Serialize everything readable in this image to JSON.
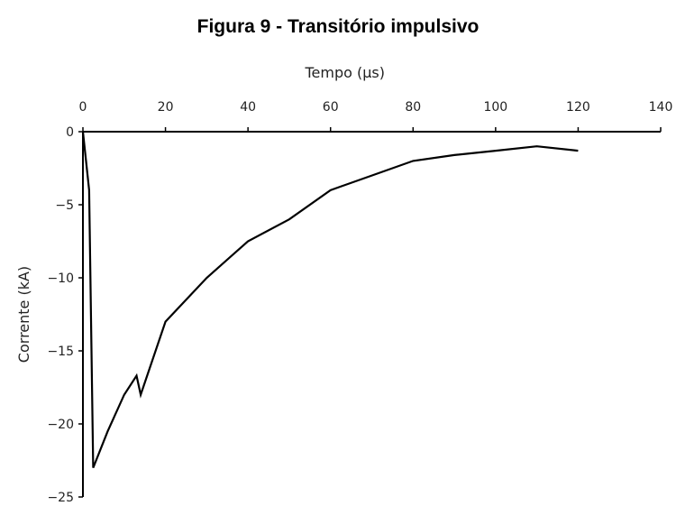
{
  "figure_caption": "Figura 9 - Transitório impulsivo",
  "chart_data": {
    "type": "line",
    "title": "",
    "xlabel": "Tempo (µs)",
    "ylabel": "Corrente (kA)",
    "x_axis_position": "top",
    "xlim": [
      0,
      140
    ],
    "ylim": [
      -25,
      0
    ],
    "x_ticks": [
      0,
      20,
      40,
      60,
      80,
      100,
      120,
      140
    ],
    "x_tick_labels": [
      "0",
      "20",
      "40",
      "60",
      "80",
      "100",
      "120",
      "140"
    ],
    "y_ticks": [
      0,
      -5,
      -10,
      -15,
      -20,
      -25
    ],
    "y_tick_labels": [
      "0",
      "−5",
      "−10",
      "−15",
      "−20",
      "−25"
    ],
    "grid": false,
    "legend": "none",
    "series": [
      {
        "color": "#000000",
        "x": [
          0,
          1.5,
          2.5,
          6,
          10,
          13,
          14,
          20,
          30,
          40,
          50,
          60,
          70,
          80,
          90,
          100,
          110,
          120
        ],
        "y": [
          0,
          -4,
          -23,
          -20.5,
          -18,
          -16.7,
          -18,
          -13,
          -10,
          -7.5,
          -6,
          -4,
          -3,
          -2,
          -1.6,
          -1.3,
          -1,
          -1.3
        ]
      }
    ]
  }
}
